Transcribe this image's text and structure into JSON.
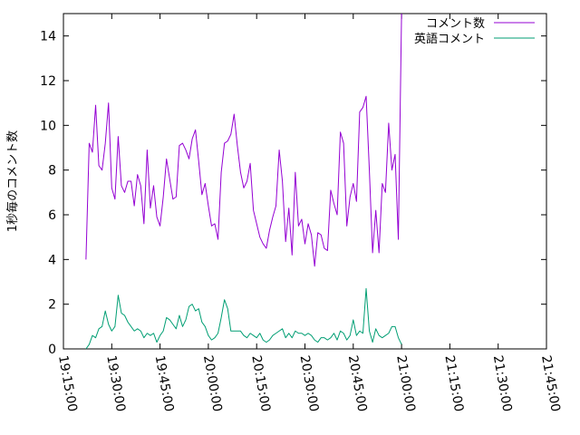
{
  "chart_data": {
    "type": "line",
    "ylabel": "1秒毎のコメント数",
    "xlim_minutes": [
      1155,
      1305
    ],
    "ylim": [
      0,
      15
    ],
    "y_ticks": [
      0,
      2,
      4,
      6,
      8,
      10,
      12,
      14
    ],
    "x_ticks": [
      "19:15:00",
      "19:30:00",
      "19:45:00",
      "20:00:00",
      "20:15:00",
      "20:30:00",
      "20:45:00",
      "21:00:00",
      "21:15:00",
      "21:30:00",
      "21:45:00"
    ],
    "grid": false,
    "legend_position": "top-right",
    "x_time_start": "19:15:00",
    "x_step_minutes": 1,
    "x_offset_minutes": 7,
    "series": [
      {
        "name": "コメント数",
        "color": "#9400d3",
        "values": [
          4.0,
          9.2,
          8.8,
          10.9,
          8.2,
          8.0,
          9.2,
          11.0,
          7.2,
          6.7,
          9.5,
          7.3,
          7.0,
          7.5,
          7.5,
          6.4,
          7.8,
          7.3,
          5.6,
          8.9,
          6.3,
          7.3,
          5.9,
          5.5,
          6.8,
          8.5,
          7.6,
          6.7,
          6.8,
          9.1,
          9.2,
          8.9,
          8.5,
          9.4,
          9.8,
          8.4,
          6.9,
          7.4,
          6.4,
          5.5,
          5.6,
          4.9,
          7.9,
          9.2,
          9.3,
          9.6,
          10.5,
          9.1,
          7.9,
          7.2,
          7.5,
          8.3,
          6.2,
          5.6,
          5.0,
          4.7,
          4.5,
          5.3,
          5.9,
          6.4,
          8.9,
          7.5,
          4.8,
          6.3,
          4.2,
          7.9,
          5.5,
          5.8,
          4.7,
          5.6,
          5.1,
          3.7,
          5.2,
          5.1,
          4.5,
          4.4,
          7.1,
          6.5,
          6.0,
          9.7,
          9.2,
          5.5,
          6.8,
          7.4,
          6.6,
          10.6,
          10.8,
          11.3,
          8.0,
          4.3,
          6.2,
          4.3,
          7.4,
          7.0,
          10.1,
          8.0,
          8.7,
          4.9,
          15.0
        ]
      },
      {
        "name": "英語コメント",
        "color": "#009e73",
        "values": [
          0.0,
          0.2,
          0.6,
          0.5,
          0.9,
          1.0,
          1.7,
          1.1,
          0.8,
          1.0,
          2.4,
          1.6,
          1.5,
          1.2,
          1.0,
          0.8,
          0.9,
          0.8,
          0.5,
          0.7,
          0.6,
          0.7,
          0.3,
          0.6,
          0.8,
          1.4,
          1.3,
          1.1,
          0.9,
          1.5,
          1.0,
          1.3,
          1.9,
          2.0,
          1.7,
          1.8,
          1.2,
          1.0,
          0.6,
          0.4,
          0.5,
          0.7,
          1.4,
          2.2,
          1.8,
          0.8,
          0.8,
          0.8,
          0.8,
          0.6,
          0.5,
          0.7,
          0.6,
          0.5,
          0.7,
          0.4,
          0.3,
          0.4,
          0.6,
          0.7,
          0.8,
          0.9,
          0.5,
          0.7,
          0.5,
          0.8,
          0.7,
          0.7,
          0.6,
          0.7,
          0.6,
          0.4,
          0.3,
          0.5,
          0.5,
          0.4,
          0.5,
          0.7,
          0.4,
          0.8,
          0.7,
          0.4,
          0.6,
          1.3,
          0.6,
          0.8,
          0.7,
          2.7,
          0.8,
          0.3,
          0.9,
          0.6,
          0.5,
          0.6,
          0.7,
          1.0,
          1.0,
          0.5,
          0.2
        ]
      }
    ]
  }
}
